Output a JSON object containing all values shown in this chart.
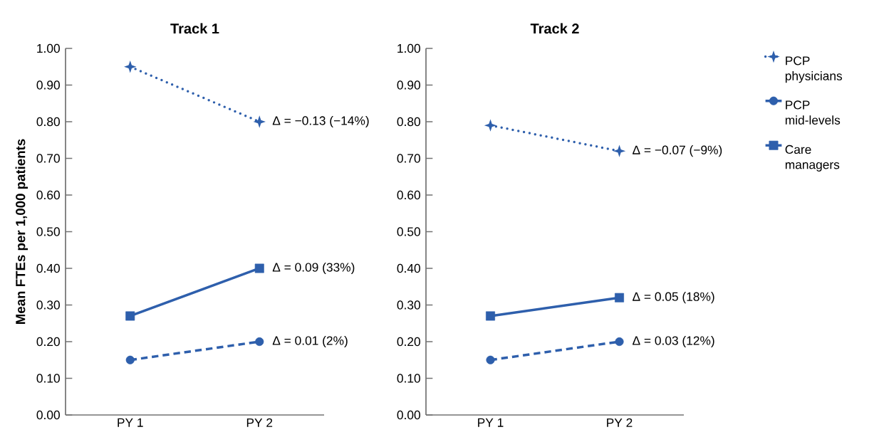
{
  "chart_data": [
    {
      "type": "line",
      "title": "Track 1",
      "ylabel": "Mean FTEs per 1,000 patients",
      "categories": [
        "PY 1",
        "PY 2"
      ],
      "series": [
        {
          "color": "#2e5fac",
          "values": [
            0.95,
            0.8
          ],
          "marker": "star",
          "line_style": "dotted"
        },
        {
          "color": "#2e5fac",
          "values": [
            0.15,
            0.2
          ],
          "marker": "circle",
          "line_style": "dashed"
        },
        {
          "color": "#2e5fac",
          "values": [
            0.27,
            0.4
          ],
          "marker": "square",
          "line_style": "solid"
        }
      ],
      "ylim": [
        0,
        1
      ],
      "yticks": [
        {
          "value": 0,
          "label": "0.00"
        },
        {
          "value": 0.1,
          "label": "0.10"
        },
        {
          "value": 0.2,
          "label": "0.20"
        },
        {
          "value": 0.3,
          "label": "0.30"
        },
        {
          "value": 0.4,
          "label": "0.40"
        },
        {
          "value": 0.5,
          "label": "0.50"
        },
        {
          "value": 0.6,
          "label": "0.60"
        },
        {
          "value": 0.7,
          "label": "0.70"
        },
        {
          "value": 0.8,
          "label": "0.80"
        },
        {
          "value": 0.9,
          "label": "0.90"
        },
        {
          "value": 1,
          "label": "1.00"
        }
      ],
      "annotations": [
        {
          "text": "Δ = −0.13 (−14%)",
          "x": "PY 2",
          "y": 0.8
        },
        {
          "text": "Δ = 0.09 (33%)",
          "x": "PY 2",
          "y": 0.4
        },
        {
          "text": "Δ = 0.01 (2%)",
          "x": "PY 2",
          "y": 0.2
        }
      ]
    },
    {
      "type": "line",
      "title": "Track 2",
      "categories": [
        "PY 1",
        "PY 2"
      ],
      "series": [
        {
          "name": "PCP physicians",
          "color": "#2e5fac",
          "values": [
            0.79,
            0.72
          ],
          "marker": "star",
          "line_style": "dotted"
        },
        {
          "name": "PCP mid-levels",
          "color": "#2e5fac",
          "values": [
            0.15,
            0.2
          ],
          "marker": "circle",
          "line_style": "dashed"
        },
        {
          "name": "Care managers",
          "color": "#2e5fac",
          "values": [
            0.27,
            0.32
          ],
          "marker": "square",
          "line_style": "solid"
        }
      ],
      "ylim": [
        0,
        1
      ],
      "yticks": [
        {
          "value": 0,
          "label": "0.00"
        },
        {
          "value": 0.1,
          "label": "0.10"
        },
        {
          "value": 0.2,
          "label": "0.20"
        },
        {
          "value": 0.3,
          "label": "0.30"
        },
        {
          "value": 0.4,
          "label": "0.40"
        },
        {
          "value": 0.5,
          "label": "0.50"
        },
        {
          "value": 0.6,
          "label": "0.60"
        },
        {
          "value": 0.7,
          "label": "0.70"
        },
        {
          "value": 0.8,
          "label": "0.80"
        },
        {
          "value": 0.9,
          "label": "0.90"
        },
        {
          "value": 1,
          "label": "1.00"
        }
      ],
      "legend": "right",
      "annotations": [
        {
          "text": "Δ = −0.07 (−9%)",
          "x": "PY 2",
          "y": 0.72
        },
        {
          "text": "Δ = 0.05 (18%)",
          "x": "PY 2",
          "y": 0.32
        },
        {
          "text": "Δ = 0.03 (12%)",
          "x": "PY 2",
          "y": 0.2
        }
      ]
    }
  ]
}
